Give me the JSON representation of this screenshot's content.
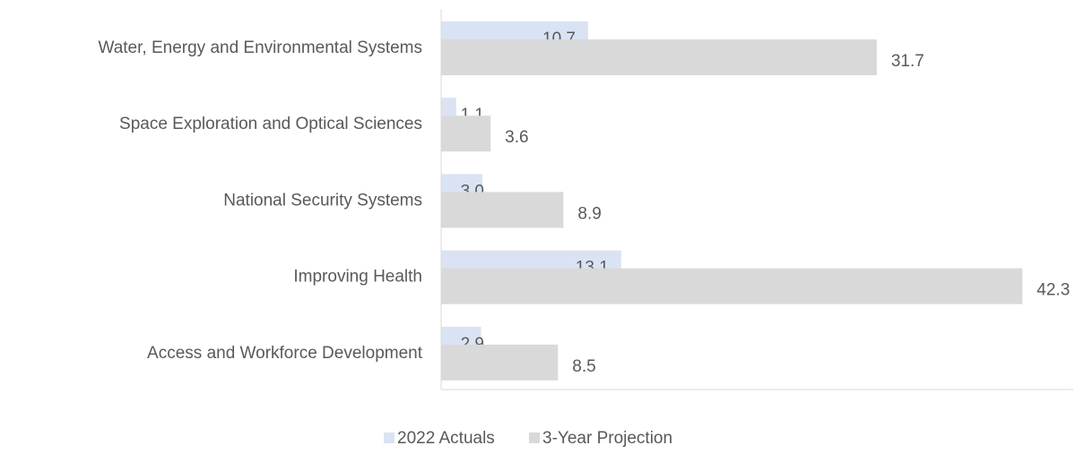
{
  "chart_data": {
    "type": "bar",
    "orientation": "horizontal",
    "categories": [
      "Water, Energy and Environmental Systems",
      "Space Exploration and Optical Sciences",
      "National Security Systems",
      "Improving Health",
      "Access and Workforce Development"
    ],
    "series": [
      {
        "name": "2022 Actuals",
        "color": "#dae3f3",
        "values": [
          10.7,
          1.1,
          3.0,
          13.1,
          2.9
        ],
        "value_labels": [
          "10.7",
          "1.1",
          "3.0",
          "13.1",
          "2.9"
        ]
      },
      {
        "name": "3-Year Projection",
        "color": "#d9d9d9",
        "values": [
          31.7,
          3.6,
          8.9,
          42.3,
          8.5
        ]
      }
    ],
    "xlim": [
      0,
      46
    ],
    "grid": false,
    "legend": "bottom"
  }
}
